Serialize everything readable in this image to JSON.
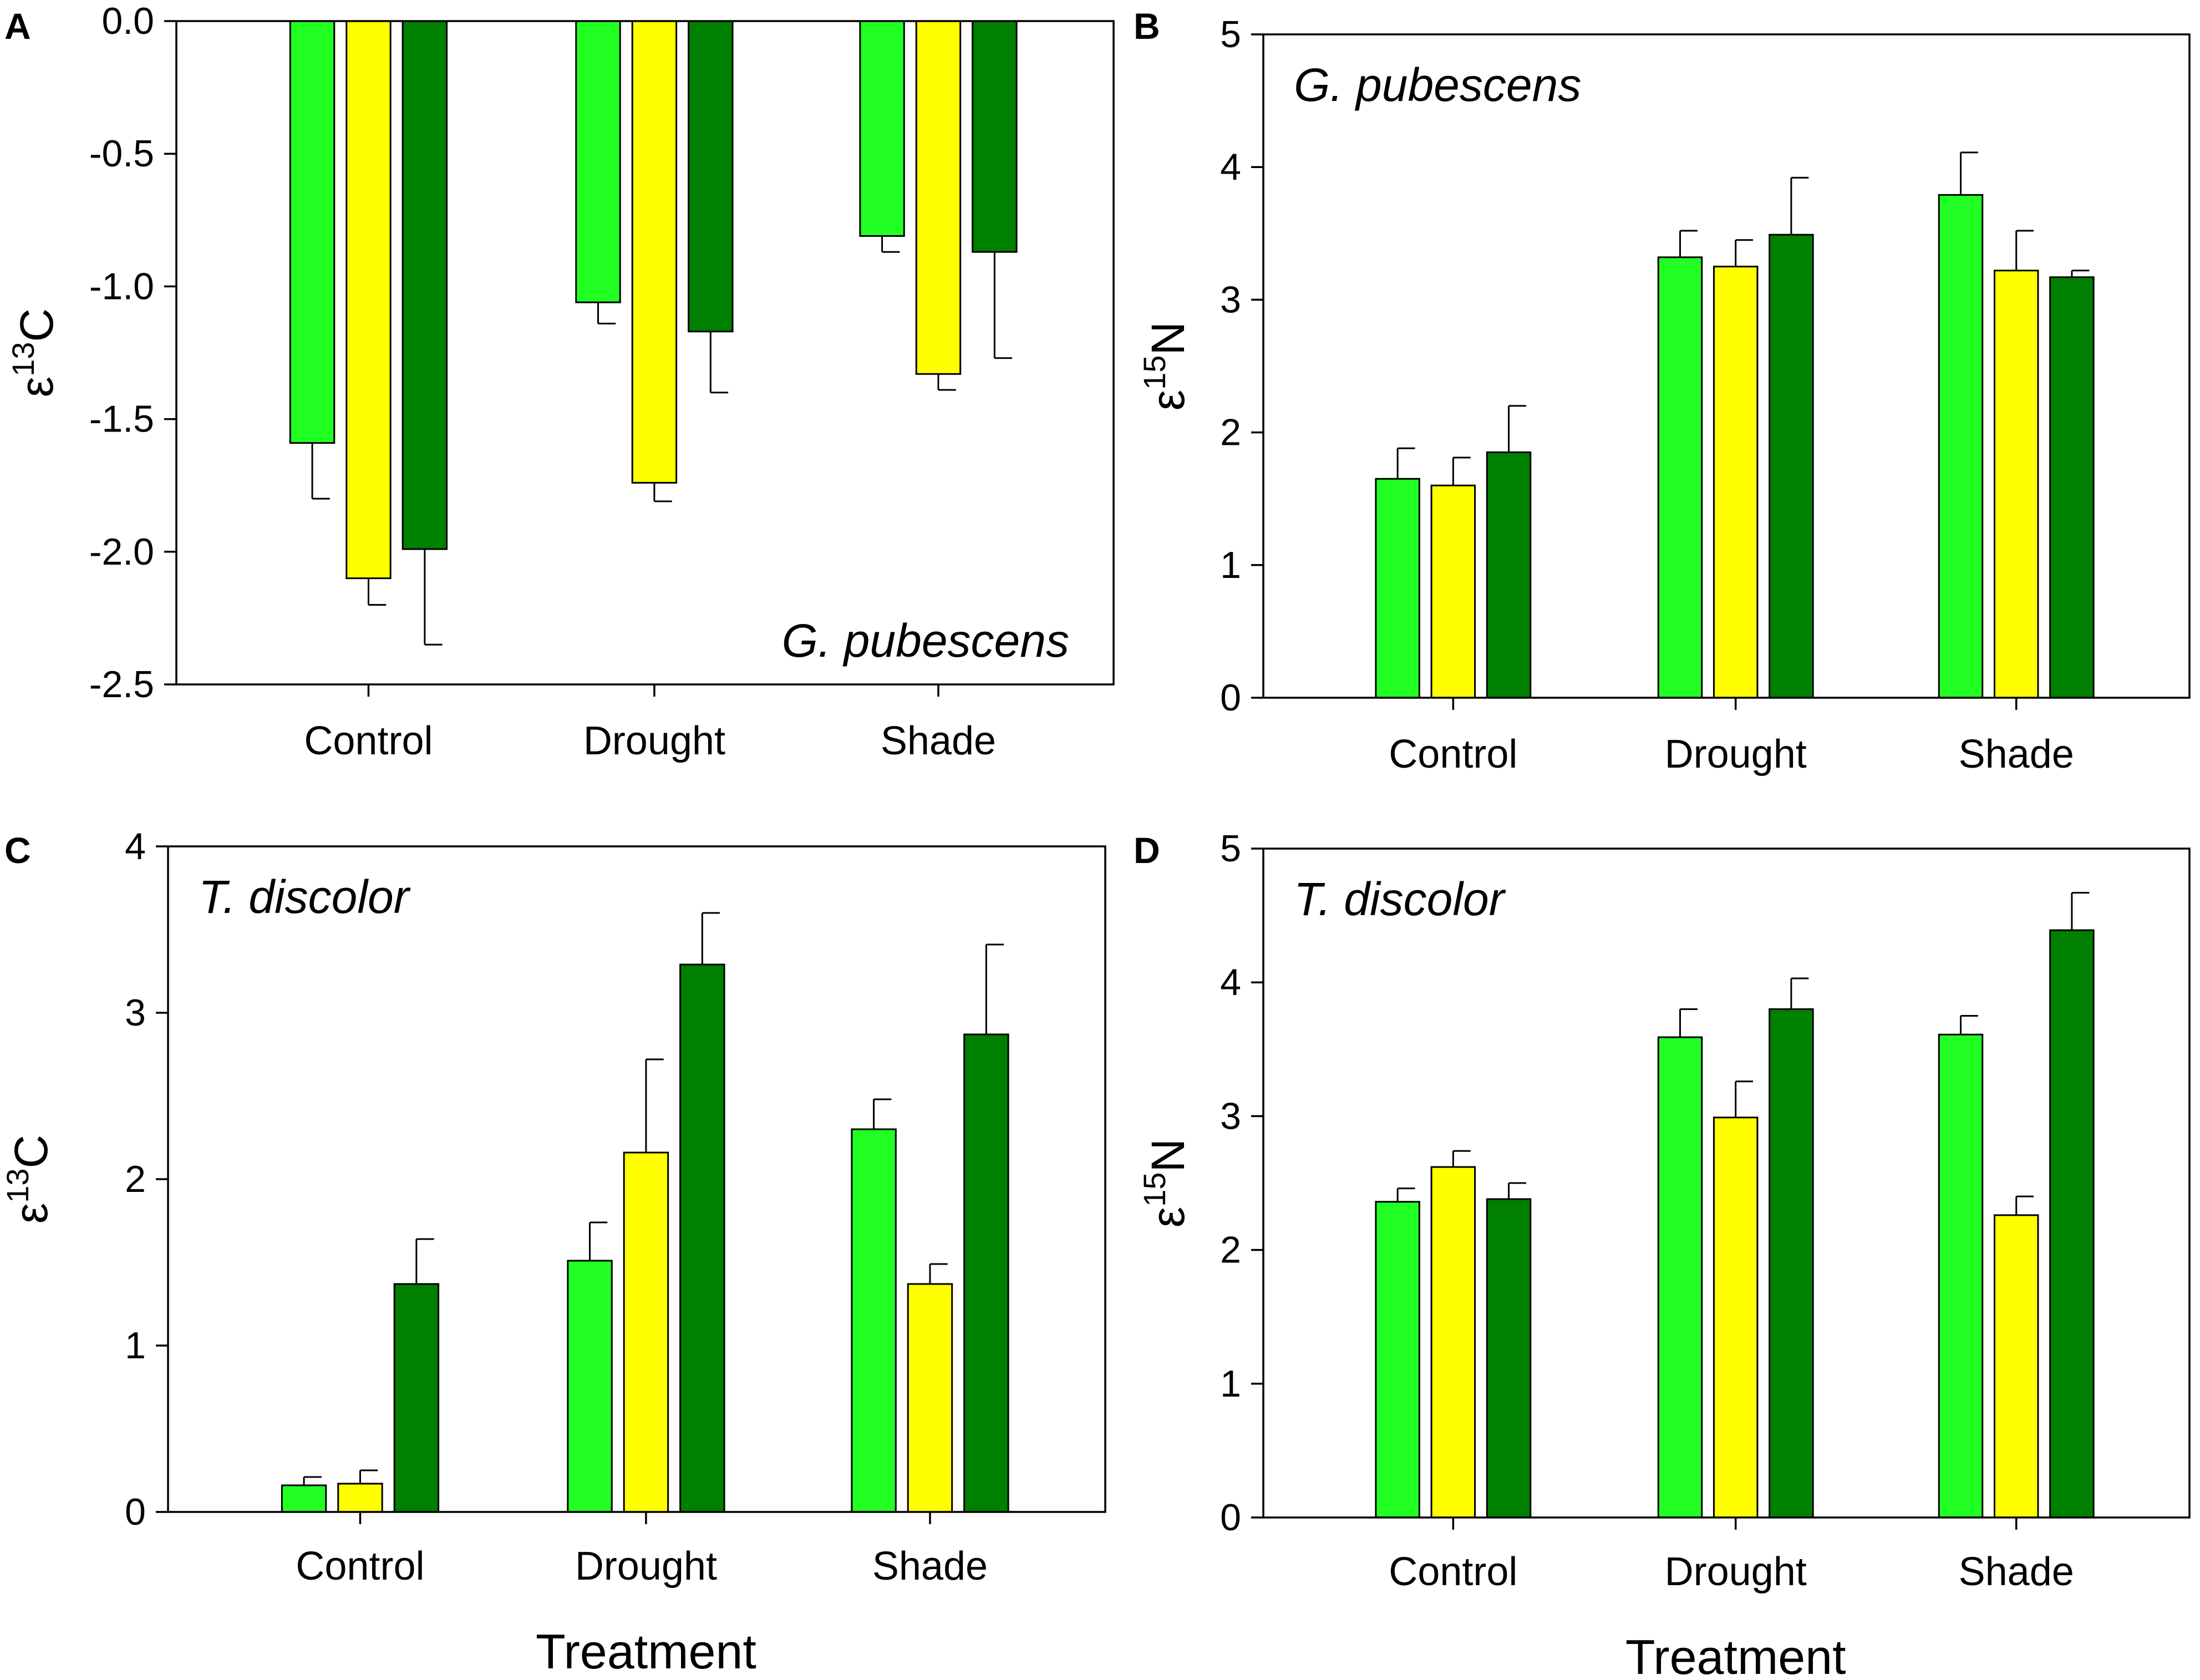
{
  "colors": {
    "light_green": "#22ff22",
    "yellow": "#ffff00",
    "dark_green": "#008000"
  },
  "chart_data": [
    {
      "type": "bar",
      "panel": "A",
      "species": "G. pubescens",
      "species_position": "bottom-right",
      "ylabel_base": "ε",
      "ylabel_sup": "13",
      "ylabel_elem": "C",
      "xlabel": "",
      "categories": [
        "Control",
        "Drought",
        "Shade"
      ],
      "ylim": [
        -2.5,
        0
      ],
      "yticks": [
        0,
        -0.5,
        -1,
        -1.5,
        -2,
        -2.5
      ],
      "yticklabels": [
        "0.0",
        "-0.5",
        "-1.0",
        "-1.5",
        "-2.0",
        "-2.5"
      ],
      "series": [
        {
          "color": "light_green",
          "values": [
            -1.59,
            -1.06,
            -0.81
          ],
          "errors": [
            0.21,
            0.08,
            0.06
          ]
        },
        {
          "color": "yellow",
          "values": [
            -2.1,
            -1.74,
            -1.33
          ],
          "errors": [
            0.1,
            0.07,
            0.06
          ]
        },
        {
          "color": "dark_green",
          "values": [
            -1.99,
            -1.17,
            -0.87
          ],
          "errors": [
            0.36,
            0.23,
            0.4
          ]
        }
      ]
    },
    {
      "type": "bar",
      "panel": "B",
      "species": "G. pubescens",
      "species_position": "top-left",
      "ylabel_base": "ε",
      "ylabel_sup": "15",
      "ylabel_elem": "N",
      "xlabel": "",
      "categories": [
        "Control",
        "Drought",
        "Shade"
      ],
      "ylim": [
        0,
        5
      ],
      "yticks": [
        0,
        1,
        2,
        3,
        4,
        5
      ],
      "yticklabels": [
        "0",
        "1",
        "2",
        "3",
        "4",
        "5"
      ],
      "series": [
        {
          "color": "light_green",
          "values": [
            1.65,
            3.32,
            3.79
          ],
          "errors": [
            0.23,
            0.2,
            0.32
          ]
        },
        {
          "color": "yellow",
          "values": [
            1.6,
            3.25,
            3.22
          ],
          "errors": [
            0.21,
            0.2,
            0.3
          ]
        },
        {
          "color": "dark_green",
          "values": [
            1.85,
            3.49,
            3.17
          ],
          "errors": [
            0.35,
            0.43,
            0.05
          ]
        }
      ]
    },
    {
      "type": "bar",
      "panel": "C",
      "species": "T. discolor",
      "species_position": "top-left",
      "ylabel_base": "ε",
      "ylabel_sup": "13",
      "ylabel_elem": "C",
      "xlabel": "Treatment",
      "categories": [
        "Control",
        "Drought",
        "Shade"
      ],
      "ylim": [
        0,
        4
      ],
      "yticks": [
        0,
        1,
        2,
        3,
        4
      ],
      "yticklabels": [
        "0",
        "1",
        "2",
        "3",
        "4"
      ],
      "series": [
        {
          "color": "light_green",
          "values": [
            0.16,
            1.51,
            2.3
          ],
          "errors": [
            0.05,
            0.23,
            0.18
          ]
        },
        {
          "color": "yellow",
          "values": [
            0.17,
            2.16,
            1.37
          ],
          "errors": [
            0.08,
            0.56,
            0.12
          ]
        },
        {
          "color": "dark_green",
          "values": [
            1.37,
            3.29,
            2.87
          ],
          "errors": [
            0.27,
            0.31,
            0.54
          ]
        }
      ]
    },
    {
      "type": "bar",
      "panel": "D",
      "species": "T. discolor",
      "species_position": "top-left",
      "ylabel_base": "ε",
      "ylabel_sup": "15",
      "ylabel_elem": "N",
      "xlabel": "Treatment",
      "categories": [
        "Control",
        "Drought",
        "Shade"
      ],
      "ylim": [
        0,
        5
      ],
      "yticks": [
        0,
        1,
        2,
        3,
        4,
        5
      ],
      "yticklabels": [
        "0",
        "1",
        "2",
        "3",
        "4",
        "5"
      ],
      "series": [
        {
          "color": "light_green",
          "values": [
            2.36,
            3.59,
            3.61
          ],
          "errors": [
            0.1,
            0.21,
            0.14
          ]
        },
        {
          "color": "yellow",
          "values": [
            2.62,
            2.99,
            2.26
          ],
          "errors": [
            0.12,
            0.27,
            0.14
          ]
        },
        {
          "color": "dark_green",
          "values": [
            2.38,
            3.8,
            4.39
          ],
          "errors": [
            0.12,
            0.23,
            0.28
          ]
        }
      ]
    }
  ]
}
